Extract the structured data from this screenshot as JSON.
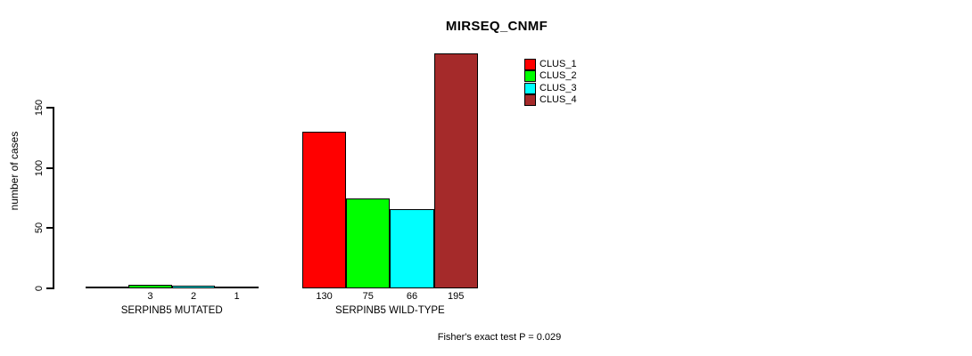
{
  "title": "MIRSEQ_CNMF",
  "y_axis": {
    "label": "number of cases"
  },
  "footnote": "Fisher's exact test P = 0.029",
  "legend": {
    "items": [
      {
        "label": "CLUS_1",
        "color": "#FF0000"
      },
      {
        "label": "CLUS_2",
        "color": "#00FF00"
      },
      {
        "label": "CLUS_3",
        "color": "#00FFFF"
      },
      {
        "label": "CLUS_4",
        "color": "#A52A2A"
      }
    ]
  },
  "chart_data": {
    "type": "bar",
    "title": "MIRSEQ_CNMF",
    "xlabel": "",
    "ylabel": "number of cases",
    "ylim": [
      0,
      150
    ],
    "yticks": [
      0,
      50,
      100,
      150
    ],
    "grid": false,
    "legend_position": "top-right",
    "series": [
      "CLUS_1",
      "CLUS_2",
      "CLUS_3",
      "CLUS_4"
    ],
    "colors": [
      "#FF0000",
      "#00FF00",
      "#00FFFF",
      "#A52A2A"
    ],
    "groups": [
      {
        "label": "SERPINB5 MUTATED",
        "values": [
          0,
          3,
          2,
          1
        ],
        "bar_labels": [
          "",
          "3",
          "2",
          "1"
        ]
      },
      {
        "label": "SERPINB5 WILD-TYPE",
        "values": [
          130,
          75,
          66,
          195
        ],
        "bar_labels": [
          "130",
          "75",
          "66",
          "195"
        ]
      }
    ],
    "annotation": "Fisher's exact test P = 0.029"
  }
}
